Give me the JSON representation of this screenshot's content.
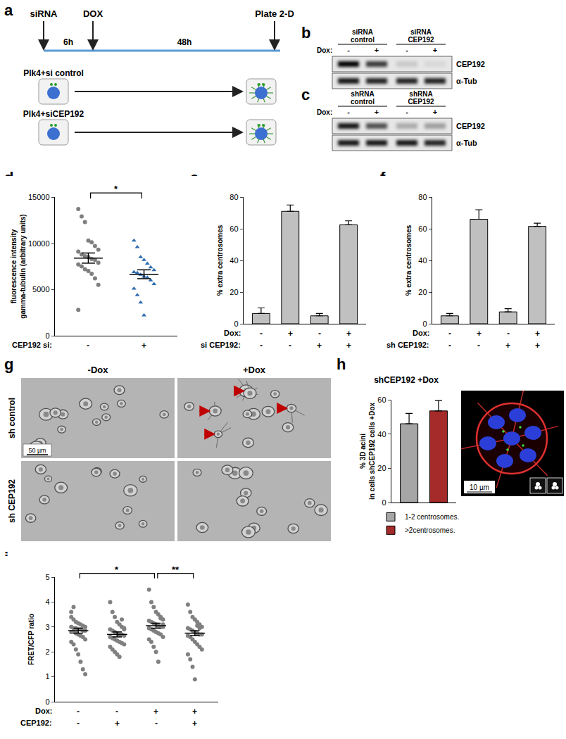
{
  "schematic": {
    "label": "a",
    "start": "siRNA",
    "interval1": "6h",
    "treatment": "DOX",
    "interval2": "48h",
    "end": "Plate 2-D",
    "conditions": [
      "Plk4+si control",
      "Plk4+siCEP192"
    ]
  },
  "blots": [
    {
      "label": "b",
      "groups": [
        "siRNA control",
        "siRNA CEP192"
      ],
      "lane_row": "Dox:",
      "lanes": [
        "-",
        "+",
        "-",
        "+"
      ],
      "bands": [
        "CEP192",
        "α-Tub"
      ]
    },
    {
      "label": "c",
      "groups": [
        "shRNA control",
        "shRNA CEP192"
      ],
      "lane_row": "Dox:",
      "lanes": [
        "-",
        "+",
        "-",
        "+"
      ],
      "bands": [
        "CEP192",
        "α-Tub"
      ]
    }
  ],
  "chart_data": [
    {
      "label": "d",
      "type": "scatter",
      "y_label": [
        "fluorescence intensity",
        "gamma-tubulin (arbitrary units)"
      ],
      "ylim": [
        0,
        15000
      ],
      "yticks": [
        0,
        5000,
        10000,
        15000
      ],
      "x_rows": [
        {
          "name": "CEP192 si:",
          "labels": [
            "-",
            "+"
          ]
        }
      ],
      "series": [
        {
          "color": "#7f7f7f",
          "marker": "circle",
          "values": [
            13700,
            12900,
            12300,
            10300,
            10100,
            9700,
            9300,
            9100,
            8800,
            8600,
            8500,
            8300,
            8200,
            7900,
            7700,
            7500,
            7200,
            7000,
            6700,
            6200,
            5500,
            2800
          ],
          "mean": 8400,
          "sem": 550
        },
        {
          "color": "#2e6bb0",
          "marker": "triangle-up",
          "values": [
            10300,
            9600,
            8500,
            8200,
            7800,
            7400,
            7100,
            6900,
            6800,
            6600,
            6400,
            6300,
            6000,
            5600,
            5100,
            4400,
            3600,
            2200
          ],
          "mean": 6650,
          "sem": 480
        }
      ],
      "significance": [
        {
          "from": 0,
          "to": 1,
          "label": "*"
        }
      ]
    },
    {
      "label": "e",
      "type": "bar",
      "y_label": "% extra centrosomes",
      "ylim": [
        0,
        80
      ],
      "yticks": [
        0,
        20,
        40,
        60,
        80
      ],
      "color": "#c0c0c0",
      "values": [
        6.5,
        71,
        5,
        62.5
      ],
      "errors": [
        3.5,
        4,
        1.5,
        2.5
      ],
      "x_rows": [
        {
          "name": "Dox:",
          "labels": [
            "-",
            "+",
            "-",
            "+"
          ]
        },
        {
          "name": "si CEP192:",
          "labels": [
            "-",
            "-",
            "+",
            "+"
          ]
        }
      ]
    },
    {
      "label": "f",
      "type": "bar",
      "y_label": "% extra centrosomes",
      "ylim": [
        0,
        80
      ],
      "yticks": [
        0,
        20,
        40,
        60,
        80
      ],
      "color": "#c0c0c0",
      "values": [
        5,
        66,
        7.5,
        61.5
      ],
      "errors": [
        1.5,
        6,
        2,
        2
      ],
      "x_rows": [
        {
          "name": "Dox:",
          "labels": [
            "-",
            "+",
            "-",
            "+"
          ]
        },
        {
          "name": "sh CEP192:",
          "labels": [
            "-",
            "-",
            "+",
            "+"
          ]
        }
      ]
    },
    {
      "label": "h",
      "type": "bar",
      "title": "shCEP192 +Dox",
      "y_label": [
        "% 3D acini",
        "in cells shCEP192 cells +Dox"
      ],
      "ylim": [
        0,
        60
      ],
      "yticks": [
        0,
        20,
        40,
        60
      ],
      "legend": "bottom",
      "series": [
        {
          "name": "1-2 centrosomes.",
          "color": "#a6a6a6",
          "values": [
            46
          ],
          "errors": [
            6
          ]
        },
        {
          "name": ">2centrosomes.",
          "color": "#a52a2a",
          "values": [
            53.5
          ],
          "errors": [
            6
          ]
        }
      ]
    },
    {
      "label": "i",
      "type": "scatter",
      "y_label": "FRET/CFP ratio",
      "ylim": [
        0,
        5
      ],
      "yticks": [
        0,
        1,
        2,
        3,
        4,
        5
      ],
      "x_rows": [
        {
          "name": "Dox:",
          "labels": [
            "-",
            "-",
            "+",
            "+"
          ]
        },
        {
          "name": "CEP192:",
          "labels": [
            "-",
            "+",
            "-",
            "+"
          ]
        }
      ],
      "series": [
        {
          "color": "#808080",
          "marker": "circle",
          "values": [
            3.4,
            3.3,
            3.2,
            3.15,
            3.1,
            3.05,
            3.0,
            3.0,
            2.95,
            2.95,
            2.9,
            2.9,
            2.85,
            2.85,
            2.8,
            2.8,
            2.75,
            2.7,
            2.65,
            2.6,
            2.5,
            2.4,
            2.3,
            2.1,
            1.9,
            1.6,
            1.3,
            1.1,
            3.6,
            3.8
          ],
          "mean": 2.85,
          "sem": 0.1
        },
        {
          "color": "#808080",
          "marker": "circle",
          "values": [
            4.0,
            3.6,
            3.4,
            3.2,
            3.1,
            3.0,
            2.95,
            2.9,
            2.85,
            2.8,
            2.75,
            2.7,
            2.7,
            2.65,
            2.6,
            2.55,
            2.5,
            2.45,
            2.4,
            2.35,
            2.3,
            2.2,
            2.1,
            2.0,
            1.9,
            1.8,
            3.3,
            2.9
          ],
          "mean": 2.7,
          "sem": 0.1
        },
        {
          "color": "#808080",
          "marker": "circle",
          "values": [
            4.5,
            4.0,
            3.8,
            3.6,
            3.5,
            3.4,
            3.3,
            3.25,
            3.2,
            3.15,
            3.1,
            3.05,
            3.0,
            3.0,
            2.95,
            2.9,
            2.85,
            2.8,
            2.75,
            2.7,
            2.6,
            2.5,
            2.4,
            2.2,
            2.0,
            1.6,
            3.35,
            3.1
          ],
          "mean": 3.05,
          "sem": 0.1
        },
        {
          "color": "#808080",
          "marker": "circle",
          "values": [
            3.9,
            3.6,
            3.4,
            3.3,
            3.2,
            3.1,
            3.0,
            2.95,
            2.9,
            2.85,
            2.8,
            2.75,
            2.7,
            2.7,
            2.65,
            2.6,
            2.5,
            2.4,
            2.3,
            2.2,
            2.1,
            1.9,
            1.7,
            1.4,
            0.9,
            3.05,
            2.95
          ],
          "mean": 2.75,
          "sem": 0.1
        }
      ],
      "significance": [
        {
          "from": 0,
          "to": 2,
          "label": "*"
        },
        {
          "from": 2,
          "to": 3,
          "label": "**"
        }
      ]
    }
  ],
  "micrographs": {
    "label": "g",
    "columns": [
      "-Dox",
      "+Dox"
    ],
    "rows": [
      "sh control",
      "sh CEP192"
    ],
    "scale_bar": "50 µm"
  },
  "acini_image": {
    "scale_bar": "10 µm"
  }
}
